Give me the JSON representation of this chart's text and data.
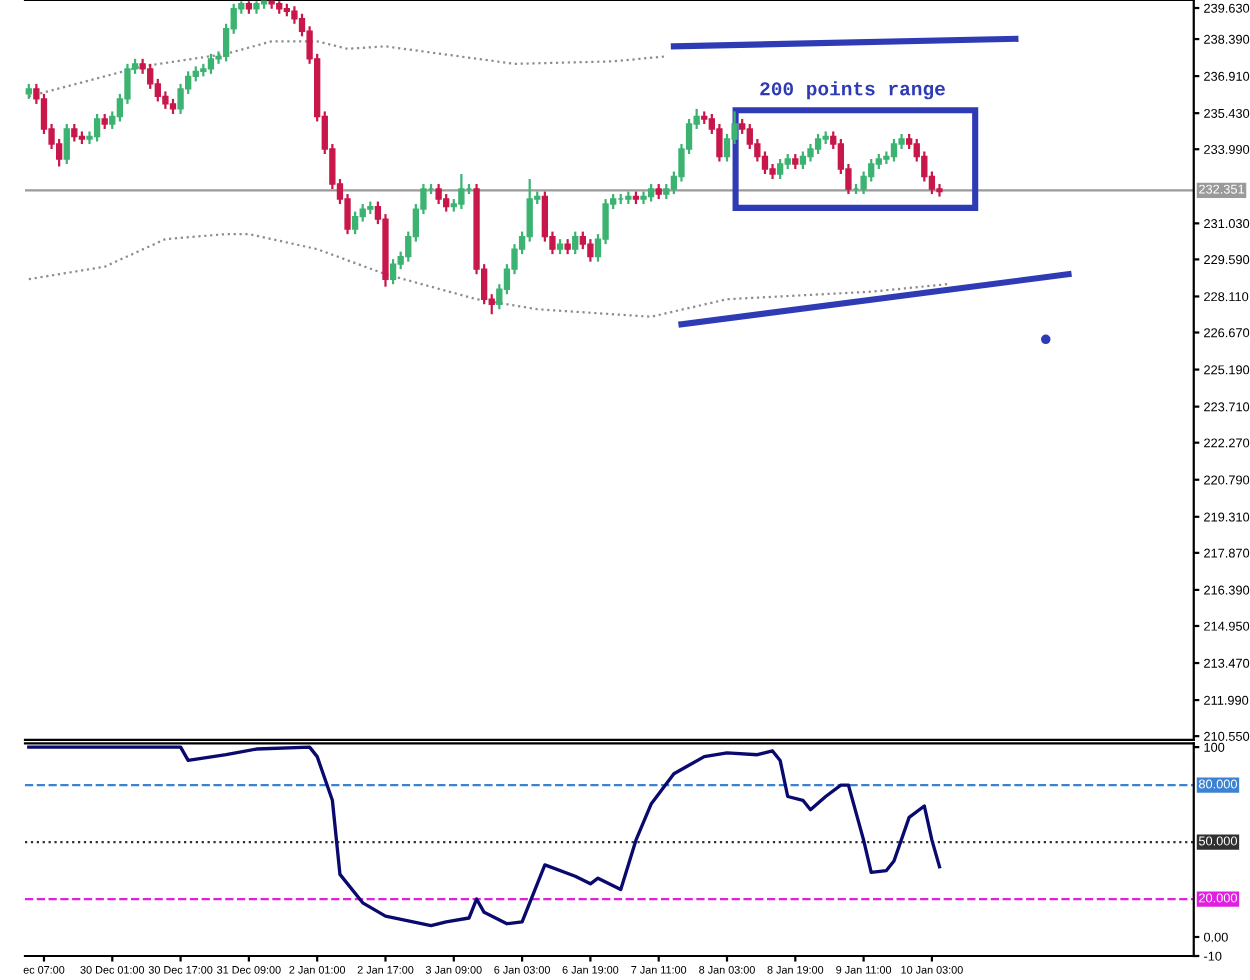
{
  "chart_data": [
    {
      "type": "candlestick",
      "ylim": [
        210.4,
        239.95
      ],
      "tick_labels": "y",
      "grid": false,
      "legend": false,
      "categories": [
        null,
        null,
        null,
        null,
        null,
        null,
        null,
        null,
        null,
        null,
        null,
        null,
        null,
        null,
        null,
        null,
        null,
        null,
        null,
        null,
        null,
        null,
        null,
        null,
        null,
        null,
        null,
        null,
        null,
        null,
        null,
        null,
        null,
        null,
        null,
        null,
        null,
        null,
        null,
        null,
        null,
        null,
        null,
        null,
        null,
        null,
        null,
        null,
        null,
        null,
        null,
        null,
        null,
        null,
        null,
        null,
        null,
        null,
        null,
        null,
        null,
        null,
        null,
        null,
        null,
        null,
        null,
        null,
        null,
        null,
        null,
        null,
        null,
        null,
        null,
        null,
        null,
        null,
        null,
        null,
        null,
        null,
        null,
        null,
        null,
        null,
        null,
        null,
        null,
        null,
        null,
        null,
        null,
        null,
        null,
        null,
        null,
        null,
        null,
        null,
        null,
        null,
        null,
        null,
        null,
        null,
        null,
        null,
        null,
        null,
        null,
        null,
        null,
        null,
        null,
        null,
        null,
        null,
        null,
        null,
        null,
        null,
        null,
        null,
        null,
        null,
        null,
        null,
        null,
        null,
        null,
        null,
        null,
        null,
        null,
        null,
        null,
        null,
        null,
        null,
        null,
        null,
        null,
        null,
        null,
        null,
        null,
        null,
        null,
        null,
        null,
        null,
        null,
        null
      ],
      "yticks": [
        {
          "value": 239.63,
          "label": "239.630"
        },
        {
          "value": 238.39,
          "label": "238.390"
        },
        {
          "value": 236.91,
          "label": "236.910"
        },
        {
          "value": 235.43,
          "label": "235.430"
        },
        {
          "value": 233.99,
          "label": "233.990"
        },
        {
          "value": 231.03,
          "label": "231.030"
        },
        {
          "value": 229.59,
          "label": "229.590"
        },
        {
          "value": 228.11,
          "label": "228.110"
        },
        {
          "value": 226.67,
          "label": "226.670"
        },
        {
          "value": 225.19,
          "label": "225.190"
        },
        {
          "value": 223.71,
          "label": "223.710"
        },
        {
          "value": 222.27,
          "label": "222.270"
        },
        {
          "value": 220.79,
          "label": "220.790"
        },
        {
          "value": 219.31,
          "label": "219.310"
        },
        {
          "value": 217.87,
          "label": "217.870"
        },
        {
          "value": 216.39,
          "label": "216.390"
        },
        {
          "value": 214.95,
          "label": "214.950"
        },
        {
          "value": 213.47,
          "label": "213.470"
        },
        {
          "value": 211.99,
          "label": "211.990"
        },
        {
          "value": 210.55,
          "label": "210.550"
        }
      ],
      "ref_lines": [
        {
          "axis": "y",
          "value": 232.351,
          "label": "232.351",
          "color": "#9a9a9a"
        }
      ],
      "annotations": [
        "200 points range"
      ],
      "ohlc": [
        [
          236.2,
          236.6,
          236.0,
          236.4
        ],
        [
          236.4,
          236.6,
          235.8,
          236.0
        ],
        [
          236.0,
          236.2,
          234.6,
          234.8
        ],
        [
          234.8,
          235.0,
          234.0,
          234.2
        ],
        [
          234.2,
          234.4,
          233.3,
          233.6
        ],
        [
          233.6,
          235.0,
          233.4,
          234.8
        ],
        [
          234.8,
          235.0,
          234.3,
          234.5
        ],
        [
          234.5,
          234.7,
          234.2,
          234.4
        ],
        [
          234.4,
          234.7,
          234.2,
          234.5
        ],
        [
          234.5,
          235.4,
          234.3,
          235.2
        ],
        [
          235.2,
          235.4,
          234.8,
          235.0
        ],
        [
          235.0,
          235.5,
          234.8,
          235.3
        ],
        [
          235.3,
          236.2,
          235.1,
          236.0
        ],
        [
          236.0,
          237.4,
          235.8,
          237.2
        ],
        [
          237.2,
          237.6,
          237.0,
          237.4
        ],
        [
          237.4,
          237.6,
          237.0,
          237.2
        ],
        [
          237.2,
          237.4,
          236.4,
          236.6
        ],
        [
          236.6,
          236.8,
          235.9,
          236.1
        ],
        [
          236.1,
          236.3,
          235.6,
          235.8
        ],
        [
          235.8,
          236.0,
          235.4,
          235.6
        ],
        [
          235.6,
          236.6,
          235.4,
          236.4
        ],
        [
          236.4,
          237.1,
          236.2,
          236.9
        ],
        [
          236.9,
          237.3,
          236.7,
          237.1
        ],
        [
          237.1,
          237.4,
          236.9,
          237.2
        ],
        [
          237.2,
          237.8,
          237.0,
          237.6
        ],
        [
          237.6,
          237.9,
          237.4,
          237.7
        ],
        [
          237.7,
          239.0,
          237.5,
          238.8
        ],
        [
          238.8,
          239.8,
          238.6,
          239.6
        ],
        [
          239.6,
          239.9,
          239.4,
          239.8
        ],
        [
          239.8,
          239.9,
          239.4,
          239.6
        ],
        [
          239.6,
          239.9,
          239.4,
          239.8
        ],
        [
          239.8,
          239.9,
          239.6,
          239.9
        ],
        [
          239.9,
          239.9,
          239.6,
          239.8
        ],
        [
          239.8,
          239.9,
          239.4,
          239.6
        ],
        [
          239.6,
          239.8,
          239.3,
          239.5
        ],
        [
          239.5,
          239.7,
          239.0,
          239.2
        ],
        [
          239.2,
          239.4,
          238.5,
          238.7
        ],
        [
          238.7,
          238.9,
          237.4,
          237.6
        ],
        [
          237.6,
          237.8,
          235.1,
          235.3
        ],
        [
          235.3,
          235.5,
          233.8,
          234.0
        ],
        [
          234.0,
          234.2,
          232.4,
          232.6
        ],
        [
          232.6,
          232.8,
          231.8,
          232.0
        ],
        [
          232.0,
          232.2,
          230.6,
          230.8
        ],
        [
          230.8,
          231.5,
          230.6,
          231.3
        ],
        [
          231.3,
          231.8,
          231.1,
          231.6
        ],
        [
          231.6,
          231.9,
          231.4,
          231.7
        ],
        [
          231.7,
          231.9,
          231.0,
          231.2
        ],
        [
          231.2,
          231.4,
          228.5,
          228.8
        ],
        [
          228.8,
          229.6,
          228.6,
          229.4
        ],
        [
          229.4,
          229.9,
          229.2,
          229.7
        ],
        [
          229.7,
          230.7,
          229.5,
          230.5
        ],
        [
          230.5,
          231.8,
          230.3,
          231.6
        ],
        [
          231.6,
          232.6,
          231.4,
          232.4
        ],
        [
          232.4,
          232.6,
          232.2,
          232.4
        ],
        [
          232.4,
          232.6,
          231.8,
          232.0
        ],
        [
          232.0,
          232.2,
          231.5,
          231.7
        ],
        [
          231.7,
          232.0,
          231.5,
          231.8
        ],
        [
          231.8,
          233.0,
          231.6,
          232.4
        ],
        [
          232.4,
          232.6,
          232.2,
          232.4
        ],
        [
          232.4,
          232.6,
          229.0,
          229.2
        ],
        [
          229.2,
          229.4,
          227.8,
          228.0
        ],
        [
          228.0,
          228.2,
          227.4,
          227.8
        ],
        [
          227.8,
          228.6,
          227.6,
          228.4
        ],
        [
          228.4,
          229.4,
          228.2,
          229.2
        ],
        [
          229.2,
          230.2,
          229.0,
          230.0
        ],
        [
          230.0,
          230.7,
          229.8,
          230.5
        ],
        [
          230.5,
          232.8,
          230.3,
          232.0
        ],
        [
          232.0,
          232.3,
          231.8,
          232.1
        ],
        [
          232.1,
          232.3,
          230.3,
          230.5
        ],
        [
          230.5,
          230.7,
          229.8,
          230.0
        ],
        [
          230.0,
          230.4,
          229.8,
          230.2
        ],
        [
          230.2,
          230.4,
          229.8,
          230.0
        ],
        [
          230.0,
          230.7,
          229.8,
          230.5
        ],
        [
          230.5,
          230.7,
          230.0,
          230.2
        ],
        [
          230.2,
          230.4,
          229.5,
          229.7
        ],
        [
          229.7,
          230.6,
          229.5,
          230.4
        ],
        [
          230.4,
          232.0,
          230.2,
          231.8
        ],
        [
          231.8,
          232.2,
          231.6,
          232.0
        ],
        [
          232.0,
          232.2,
          231.8,
          232.0
        ],
        [
          232.0,
          232.3,
          231.8,
          232.1
        ],
        [
          232.1,
          232.3,
          231.8,
          232.0
        ],
        [
          232.0,
          232.3,
          231.8,
          232.1
        ],
        [
          232.1,
          232.6,
          231.9,
          232.4
        ],
        [
          232.4,
          232.6,
          232.0,
          232.2
        ],
        [
          232.2,
          232.6,
          232.0,
          232.4
        ],
        [
          232.4,
          233.1,
          232.2,
          232.9
        ],
        [
          232.9,
          234.2,
          232.7,
          234.0
        ],
        [
          234.0,
          235.2,
          233.8,
          235.0
        ],
        [
          235.0,
          235.6,
          234.8,
          235.3
        ],
        [
          235.3,
          235.5,
          235.0,
          235.2
        ],
        [
          235.2,
          235.4,
          234.6,
          234.8
        ],
        [
          234.8,
          235.0,
          233.5,
          233.7
        ],
        [
          233.7,
          234.6,
          233.5,
          234.4
        ],
        [
          234.4,
          235.5,
          234.2,
          235.0
        ],
        [
          235.0,
          235.2,
          234.6,
          234.8
        ],
        [
          234.8,
          235.0,
          234.0,
          234.2
        ],
        [
          234.2,
          234.4,
          233.5,
          233.7
        ],
        [
          233.7,
          233.9,
          233.0,
          233.2
        ],
        [
          233.2,
          233.4,
          232.8,
          233.0
        ],
        [
          233.0,
          233.6,
          232.8,
          233.4
        ],
        [
          233.4,
          233.8,
          233.2,
          233.6
        ],
        [
          233.6,
          233.8,
          233.2,
          233.4
        ],
        [
          233.4,
          233.9,
          233.2,
          233.7
        ],
        [
          233.7,
          234.2,
          233.5,
          234.0
        ],
        [
          234.0,
          234.6,
          233.8,
          234.4
        ],
        [
          234.4,
          234.7,
          234.2,
          234.5
        ],
        [
          234.5,
          234.7,
          234.0,
          234.2
        ],
        [
          234.2,
          234.4,
          233.0,
          233.2
        ],
        [
          233.2,
          233.4,
          232.2,
          232.4
        ],
        [
          232.4,
          232.6,
          232.2,
          232.4
        ],
        [
          232.4,
          233.1,
          232.2,
          232.9
        ],
        [
          232.9,
          233.6,
          232.7,
          233.4
        ],
        [
          233.4,
          233.8,
          233.2,
          233.6
        ],
        [
          233.6,
          233.9,
          233.4,
          233.7
        ],
        [
          233.7,
          234.4,
          233.5,
          234.2
        ],
        [
          234.2,
          234.6,
          234.0,
          234.4
        ],
        [
          234.4,
          234.6,
          234.0,
          234.2
        ],
        [
          234.2,
          234.4,
          233.5,
          233.7
        ],
        [
          233.7,
          233.9,
          232.7,
          232.9
        ],
        [
          232.9,
          233.1,
          232.2,
          232.4
        ],
        [
          232.4,
          232.6,
          232.1,
          232.3
        ],
        null,
        null,
        null,
        null,
        null,
        null,
        null,
        null,
        null,
        null,
        null,
        null,
        null,
        null,
        null,
        null,
        null,
        null,
        null,
        null,
        null,
        null,
        null,
        null,
        null,
        null,
        null,
        null,
        null,
        null,
        null,
        null,
        null
      ],
      "colors": [
        "#3cb371",
        "#c8174a",
        "#c8174a",
        "#c8174a",
        "#c8174a",
        "#3cb371",
        "#c8174a",
        "#c8174a",
        "#3cb371",
        "#3cb371",
        "#c8174a",
        "#3cb371",
        "#3cb371",
        "#3cb371",
        "#3cb371",
        "#c8174a",
        "#c8174a",
        "#c8174a",
        "#c8174a",
        "#c8174a",
        "#3cb371",
        "#3cb371",
        "#3cb371",
        "#3cb371",
        "#3cb371",
        "#3cb371",
        "#3cb371",
        "#3cb371",
        "#3cb371",
        "#c8174a",
        "#3cb371",
        "#3cb371",
        "#c8174a",
        "#c8174a",
        "#c8174a",
        "#c8174a",
        "#c8174a",
        "#c8174a",
        "#c8174a",
        "#c8174a",
        "#c8174a",
        "#c8174a",
        "#c8174a",
        "#3cb371",
        "#3cb371",
        "#3cb371",
        "#c8174a",
        "#c8174a",
        "#3cb371",
        "#3cb371",
        "#3cb371",
        "#3cb371",
        "#3cb371",
        "#3cb371",
        "#c8174a",
        "#c8174a",
        "#3cb371",
        "#3cb371",
        "#3cb371",
        "#c8174a",
        "#c8174a",
        "#c8174a",
        "#3cb371",
        "#3cb371",
        "#3cb371",
        "#3cb371",
        "#3cb371",
        "#3cb371",
        "#c8174a",
        "#c8174a",
        "#3cb371",
        "#c8174a",
        "#3cb371",
        "#c8174a",
        "#c8174a",
        "#3cb371",
        "#3cb371",
        "#3cb371",
        "#3cb371",
        "#3cb371",
        "#c8174a",
        "#3cb371",
        "#3cb371",
        "#c8174a",
        "#3cb371",
        "#3cb371",
        "#3cb371",
        "#3cb371",
        "#3cb371",
        "#c8174a",
        "#c8174a",
        "#c8174a",
        "#3cb371",
        "#3cb371",
        "#c8174a",
        "#c8174a",
        "#c8174a",
        "#c8174a",
        "#c8174a",
        "#3cb371",
        "#3cb371",
        "#c8174a",
        "#3cb371",
        "#3cb371",
        "#3cb371",
        "#3cb371",
        "#c8174a",
        "#c8174a",
        "#c8174a",
        "#3cb371",
        "#3cb371",
        "#3cb371",
        "#3cb371",
        "#3cb371",
        "#3cb371",
        "#3cb371",
        "#c8174a",
        "#c8174a",
        "#c8174a",
        "#c8174a",
        "#c8174a",
        null,
        null,
        null,
        null,
        null,
        null,
        null,
        null,
        null,
        null,
        null,
        null,
        null,
        null,
        null,
        null,
        null,
        null,
        null,
        null,
        null,
        null,
        null,
        null,
        null,
        null,
        null,
        null,
        null,
        null,
        null,
        null,
        null
      ],
      "series": [
        {
          "type": "line",
          "color": "#8c8c8c",
          "line_style": "dotted",
          "values": [
            236.1,
            null,
            null,
            null,
            null,
            null,
            null,
            null,
            null,
            null,
            null,
            null,
            null,
            null,
            null,
            237.3,
            null,
            null,
            null,
            null,
            null,
            null,
            null,
            null,
            null,
            null,
            237.8,
            null,
            null,
            null,
            null,
            null,
            238.3,
            null,
            null,
            null,
            null,
            null,
            238.3,
            null,
            null,
            null,
            238.0,
            null,
            null,
            null,
            null,
            238.1,
            null,
            null,
            null,
            null,
            null,
            null,
            null,
            null,
            null,
            null,
            null,
            null,
            null,
            null,
            null,
            null,
            237.4,
            null,
            null,
            null,
            null,
            null,
            null,
            null,
            null,
            null,
            null,
            null,
            null,
            237.5,
            null,
            null,
            null,
            null,
            null,
            null,
            237.7,
            null,
            null,
            null,
            null,
            null,
            null,
            null,
            null,
            null,
            null,
            null,
            null,
            null,
            null,
            null,
            null,
            null,
            null,
            null,
            null,
            null,
            null,
            null,
            null,
            null,
            null,
            null,
            null,
            null,
            null,
            null,
            null,
            null,
            null,
            null,
            null,
            null,
            null,
            null,
            null,
            null,
            null,
            null,
            null,
            null,
            null,
            null,
            null,
            null,
            null,
            null,
            null,
            null,
            null,
            null,
            null,
            null,
            null,
            null,
            null,
            null,
            null,
            null,
            null,
            null,
            null,
            null,
            null,
            null
          ]
        },
        {
          "type": "line",
          "color": "#8c8c8c",
          "line_style": "dotted",
          "values": [
            228.8,
            null,
            null,
            null,
            null,
            null,
            null,
            null,
            null,
            null,
            229.3,
            null,
            null,
            null,
            null,
            null,
            null,
            null,
            230.4,
            null,
            null,
            null,
            null,
            null,
            null,
            null,
            230.6,
            null,
            null,
            230.6,
            null,
            null,
            null,
            null,
            null,
            null,
            null,
            null,
            230.0,
            null,
            null,
            null,
            null,
            null,
            null,
            null,
            null,
            229.0,
            null,
            null,
            null,
            null,
            null,
            null,
            null,
            null,
            null,
            null,
            null,
            228.0,
            null,
            null,
            null,
            null,
            null,
            null,
            null,
            227.6,
            null,
            null,
            null,
            null,
            null,
            null,
            null,
            null,
            null,
            null,
            null,
            null,
            null,
            null,
            227.3,
            null,
            null,
            null,
            null,
            null,
            null,
            null,
            null,
            null,
            228.0,
            null,
            null,
            null,
            null,
            null,
            null,
            null,
            null,
            null,
            null,
            null,
            null,
            null,
            null,
            null,
            null,
            null,
            null,
            228.3,
            null,
            null,
            null,
            null,
            null,
            null,
            null,
            null,
            null,
            228.6,
            null,
            null,
            null,
            null,
            null,
            null,
            null,
            null,
            null,
            null,
            null,
            null,
            null,
            null,
            null,
            null,
            null,
            null,
            null,
            null,
            null,
            null,
            null,
            null,
            null,
            null,
            null,
            null,
            null,
            null,
            null,
            null
          ]
        },
        {
          "type": "line",
          "color": "#2e3bb5",
          "line_style": "solid",
          "values": [
            null,
            null,
            null,
            null,
            null,
            null,
            null,
            null,
            null,
            null,
            null,
            null,
            null,
            null,
            null,
            null,
            null,
            null,
            null,
            null,
            null,
            null,
            null,
            null,
            null,
            null,
            null,
            null,
            null,
            null,
            null,
            null,
            null,
            null,
            null,
            null,
            null,
            null,
            null,
            null,
            null,
            null,
            null,
            null,
            null,
            null,
            null,
            null,
            null,
            null,
            null,
            null,
            null,
            null,
            null,
            null,
            null,
            null,
            null,
            null,
            null,
            null,
            null,
            null,
            null,
            null,
            null,
            null,
            null,
            null,
            null,
            null,
            null,
            null,
            null,
            null,
            null,
            null,
            null,
            null,
            null,
            null,
            null,
            null,
            null,
            238.1,
            null,
            null,
            null,
            null,
            null,
            null,
            null,
            null,
            null,
            null,
            null,
            null,
            null,
            null,
            null,
            null,
            null,
            null,
            null,
            null,
            null,
            null,
            null,
            null,
            null,
            null,
            null,
            null,
            null,
            null,
            null,
            null,
            null,
            null,
            null,
            null,
            null,
            null,
            null,
            null,
            null,
            null,
            null,
            null,
            238.4,
            null,
            null,
            null,
            null,
            null,
            null,
            null,
            null,
            null,
            null,
            null,
            null,
            null,
            null,
            null,
            null,
            null,
            null,
            null,
            null,
            null,
            null,
            null
          ]
        },
        {
          "type": "line",
          "color": "#2e3bb5",
          "line_style": "solid",
          "values": [
            null,
            null,
            null,
            null,
            null,
            null,
            null,
            null,
            null,
            null,
            null,
            null,
            null,
            null,
            null,
            null,
            null,
            null,
            null,
            null,
            null,
            null,
            null,
            null,
            null,
            null,
            null,
            null,
            null,
            null,
            null,
            null,
            null,
            null,
            null,
            null,
            null,
            null,
            null,
            null,
            null,
            null,
            null,
            null,
            null,
            null,
            null,
            null,
            null,
            null,
            null,
            null,
            null,
            null,
            null,
            null,
            null,
            null,
            null,
            null,
            null,
            null,
            null,
            null,
            null,
            null,
            null,
            null,
            null,
            null,
            null,
            null,
            null,
            null,
            null,
            null,
            null,
            null,
            null,
            null,
            null,
            null,
            null,
            null,
            null,
            null,
            227.0,
            null,
            null,
            null,
            null,
            null,
            null,
            null,
            null,
            null,
            null,
            null,
            null,
            null,
            null,
            null,
            null,
            null,
            null,
            null,
            null,
            null,
            null,
            null,
            null,
            null,
            null,
            null,
            null,
            null,
            null,
            null,
            null,
            null,
            null,
            null,
            null,
            null,
            null,
            null,
            null,
            null,
            null,
            null,
            null,
            null,
            null,
            null,
            null,
            null,
            null,
            229.0,
            null,
            null,
            null,
            null,
            null,
            null,
            null,
            null,
            null,
            null,
            null,
            null,
            null,
            null,
            null,
            null
          ]
        },
        {
          "type": "scatter",
          "color": "#2e3bb5",
          "marker": "circle",
          "values": [
            null,
            null,
            null,
            null,
            null,
            null,
            null,
            null,
            null,
            null,
            null,
            null,
            null,
            null,
            null,
            null,
            null,
            null,
            null,
            null,
            null,
            null,
            null,
            null,
            null,
            null,
            null,
            null,
            null,
            null,
            null,
            null,
            null,
            null,
            null,
            null,
            null,
            null,
            null,
            null,
            null,
            null,
            null,
            null,
            null,
            null,
            null,
            null,
            null,
            null,
            null,
            null,
            null,
            null,
            null,
            null,
            null,
            null,
            null,
            null,
            null,
            null,
            null,
            null,
            null,
            null,
            null,
            null,
            null,
            null,
            null,
            null,
            null,
            null,
            null,
            null,
            null,
            null,
            null,
            null,
            null,
            null,
            null,
            null,
            null,
            null,
            null,
            null,
            null,
            null,
            null,
            null,
            null,
            null,
            null,
            null,
            null,
            null,
            null,
            null,
            null,
            null,
            null,
            null,
            null,
            null,
            null,
            null,
            null,
            null,
            null,
            null,
            null,
            null,
            null,
            null,
            null,
            null,
            null,
            null,
            null,
            null,
            null,
            null,
            null,
            null,
            null,
            null,
            null,
            null,
            null,
            null,
            null,
            null,
            226.4,
            null,
            null,
            null,
            null,
            null,
            null,
            null,
            null,
            null,
            null,
            null,
            null,
            null,
            null,
            null,
            null,
            null,
            null,
            null
          ]
        }
      ]
    },
    {
      "type": "line",
      "ylim": [
        -10,
        102
      ],
      "grid": false,
      "legend": false,
      "yticks": [
        100,
        {
          "value": 0,
          "label": "0.00"
        },
        -10
      ],
      "categories": [
        null,
        null,
        "ec 07:00",
        null,
        null,
        null,
        null,
        null,
        null,
        null,
        null,
        "30 Dec 01:00",
        null,
        null,
        null,
        null,
        null,
        null,
        null,
        null,
        "30 Dec 17:00",
        null,
        null,
        null,
        null,
        null,
        null,
        null,
        null,
        "31 Dec 09:00",
        null,
        null,
        null,
        null,
        null,
        null,
        null,
        null,
        "2 Jan 01:00",
        null,
        null,
        null,
        null,
        null,
        null,
        null,
        null,
        "2 Jan 17:00",
        null,
        null,
        null,
        null,
        null,
        null,
        null,
        null,
        "3 Jan 09:00",
        null,
        null,
        null,
        null,
        null,
        null,
        null,
        null,
        "6 Jan 03:00",
        null,
        null,
        null,
        null,
        null,
        null,
        null,
        null,
        "6 Jan 19:00",
        null,
        null,
        null,
        null,
        null,
        null,
        null,
        null,
        "7 Jan 11:00",
        null,
        null,
        null,
        null,
        null,
        null,
        null,
        null,
        "8 Jan 03:00",
        null,
        null,
        null,
        null,
        null,
        null,
        null,
        null,
        "8 Jan 19:00",
        null,
        null,
        null,
        null,
        null,
        null,
        null,
        null,
        "9 Jan 11:00",
        null,
        null,
        null,
        null,
        null,
        null,
        null,
        null,
        "10 Jan 03:00",
        null,
        null,
        null,
        null,
        null,
        null,
        null,
        null,
        null,
        null,
        null,
        null,
        null,
        null,
        null,
        null,
        null,
        null,
        null,
        null,
        null,
        null,
        null,
        null,
        null,
        null,
        null,
        null,
        null,
        null,
        null,
        null,
        null,
        null
      ],
      "ref_lines": [
        {
          "axis": "y",
          "value": 80,
          "label": "80.000",
          "color": "#3c82d2",
          "line_style": "dashed"
        },
        {
          "axis": "y",
          "value": 50,
          "label": "50.000",
          "color": "#303030",
          "line_style": "dotted"
        },
        {
          "axis": "y",
          "value": 20,
          "label": "20.000",
          "color": "#e020e0",
          "line_style": "dashed"
        }
      ],
      "series": [
        {
          "color": "#0a0a6e",
          "line_style": "solid",
          "values": [
            100,
            null,
            null,
            null,
            null,
            null,
            null,
            null,
            null,
            null,
            100,
            null,
            null,
            null,
            null,
            null,
            null,
            null,
            null,
            null,
            100,
            93,
            null,
            null,
            null,
            null,
            96,
            null,
            null,
            null,
            99,
            null,
            null,
            null,
            null,
            null,
            null,
            100,
            95,
            null,
            72,
            33,
            null,
            null,
            18,
            null,
            null,
            11,
            null,
            null,
            null,
            null,
            null,
            6,
            null,
            8,
            null,
            null,
            10,
            20,
            13,
            null,
            null,
            7,
            null,
            8,
            null,
            null,
            38,
            null,
            null,
            null,
            32,
            null,
            28,
            31,
            null,
            27,
            25,
            null,
            51,
            null,
            70,
            null,
            null,
            86,
            null,
            null,
            null,
            95,
            null,
            null,
            97,
            null,
            null,
            null,
            96,
            null,
            98,
            93,
            74,
            null,
            72,
            67,
            null,
            74,
            null,
            80,
            80,
            null,
            51,
            34,
            null,
            35,
            40,
            null,
            63,
            null,
            69,
            51,
            37,
            null,
            null,
            null,
            null,
            null,
            null,
            null,
            null,
            null,
            null,
            null,
            null,
            null,
            null,
            null,
            null,
            null,
            null,
            null,
            null,
            null,
            null,
            null,
            null,
            null,
            null,
            null,
            null,
            null,
            null,
            null,
            null,
            null
          ]
        }
      ]
    }
  ]
}
